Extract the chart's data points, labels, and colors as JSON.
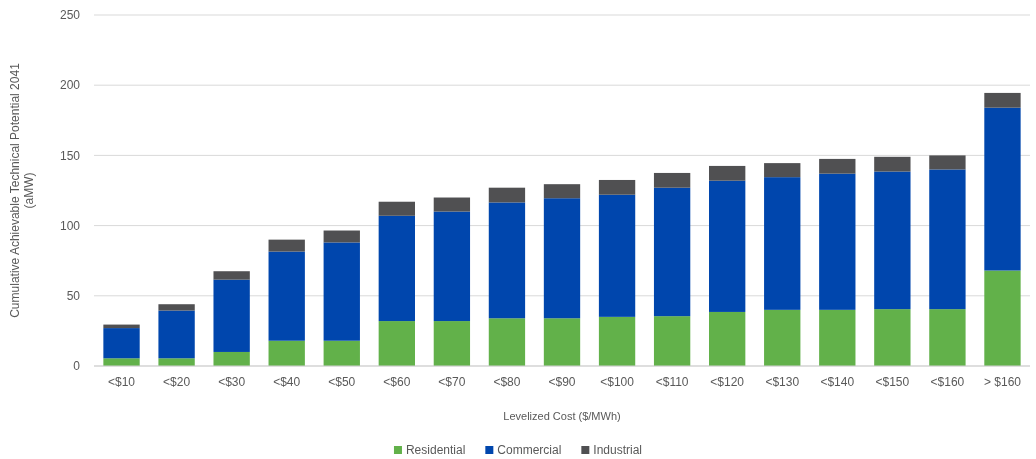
{
  "chart_data": {
    "type": "bar",
    "stacked": true,
    "xlabel": "Levelized Cost ($/MWh)",
    "ylabel": "Cumulative Achievable Technical Potential 2041 (aMW)",
    "categories": [
      "<$10",
      "<$20",
      "<$30",
      "<$40",
      "<$50",
      "<$60",
      "<$70",
      "<$80",
      "<$90",
      "<$100",
      "<$110",
      "<$120",
      "<$130",
      "<$140",
      "<$150",
      "<$160",
      "> $160"
    ],
    "series": [
      {
        "name": "Residential",
        "color": "#62b14a",
        "values": [
          5.5,
          5.5,
          10,
          18,
          18,
          32,
          32,
          34,
          34,
          35,
          35.5,
          38.5,
          40,
          40,
          40.5,
          40.5,
          68
        ]
      },
      {
        "name": "Commercial",
        "color": "#0046ad",
        "values": [
          21.5,
          34,
          51.5,
          63.5,
          70,
          75,
          78,
          82.5,
          85.5,
          87,
          91.5,
          93.5,
          94.5,
          97,
          98,
          99.5,
          116
        ]
      },
      {
        "name": "Industrial",
        "color": "#505052",
        "values": [
          2.5,
          4.5,
          6,
          8.5,
          8.5,
          10,
          10,
          10.5,
          10,
          10.5,
          10.5,
          10.5,
          10,
          10.5,
          10.5,
          10,
          10.5
        ]
      }
    ],
    "ylim": [
      0,
      250
    ],
    "yticks": [
      0,
      50,
      100,
      150,
      200,
      250
    ],
    "grid": "y",
    "legend": "bottom"
  }
}
